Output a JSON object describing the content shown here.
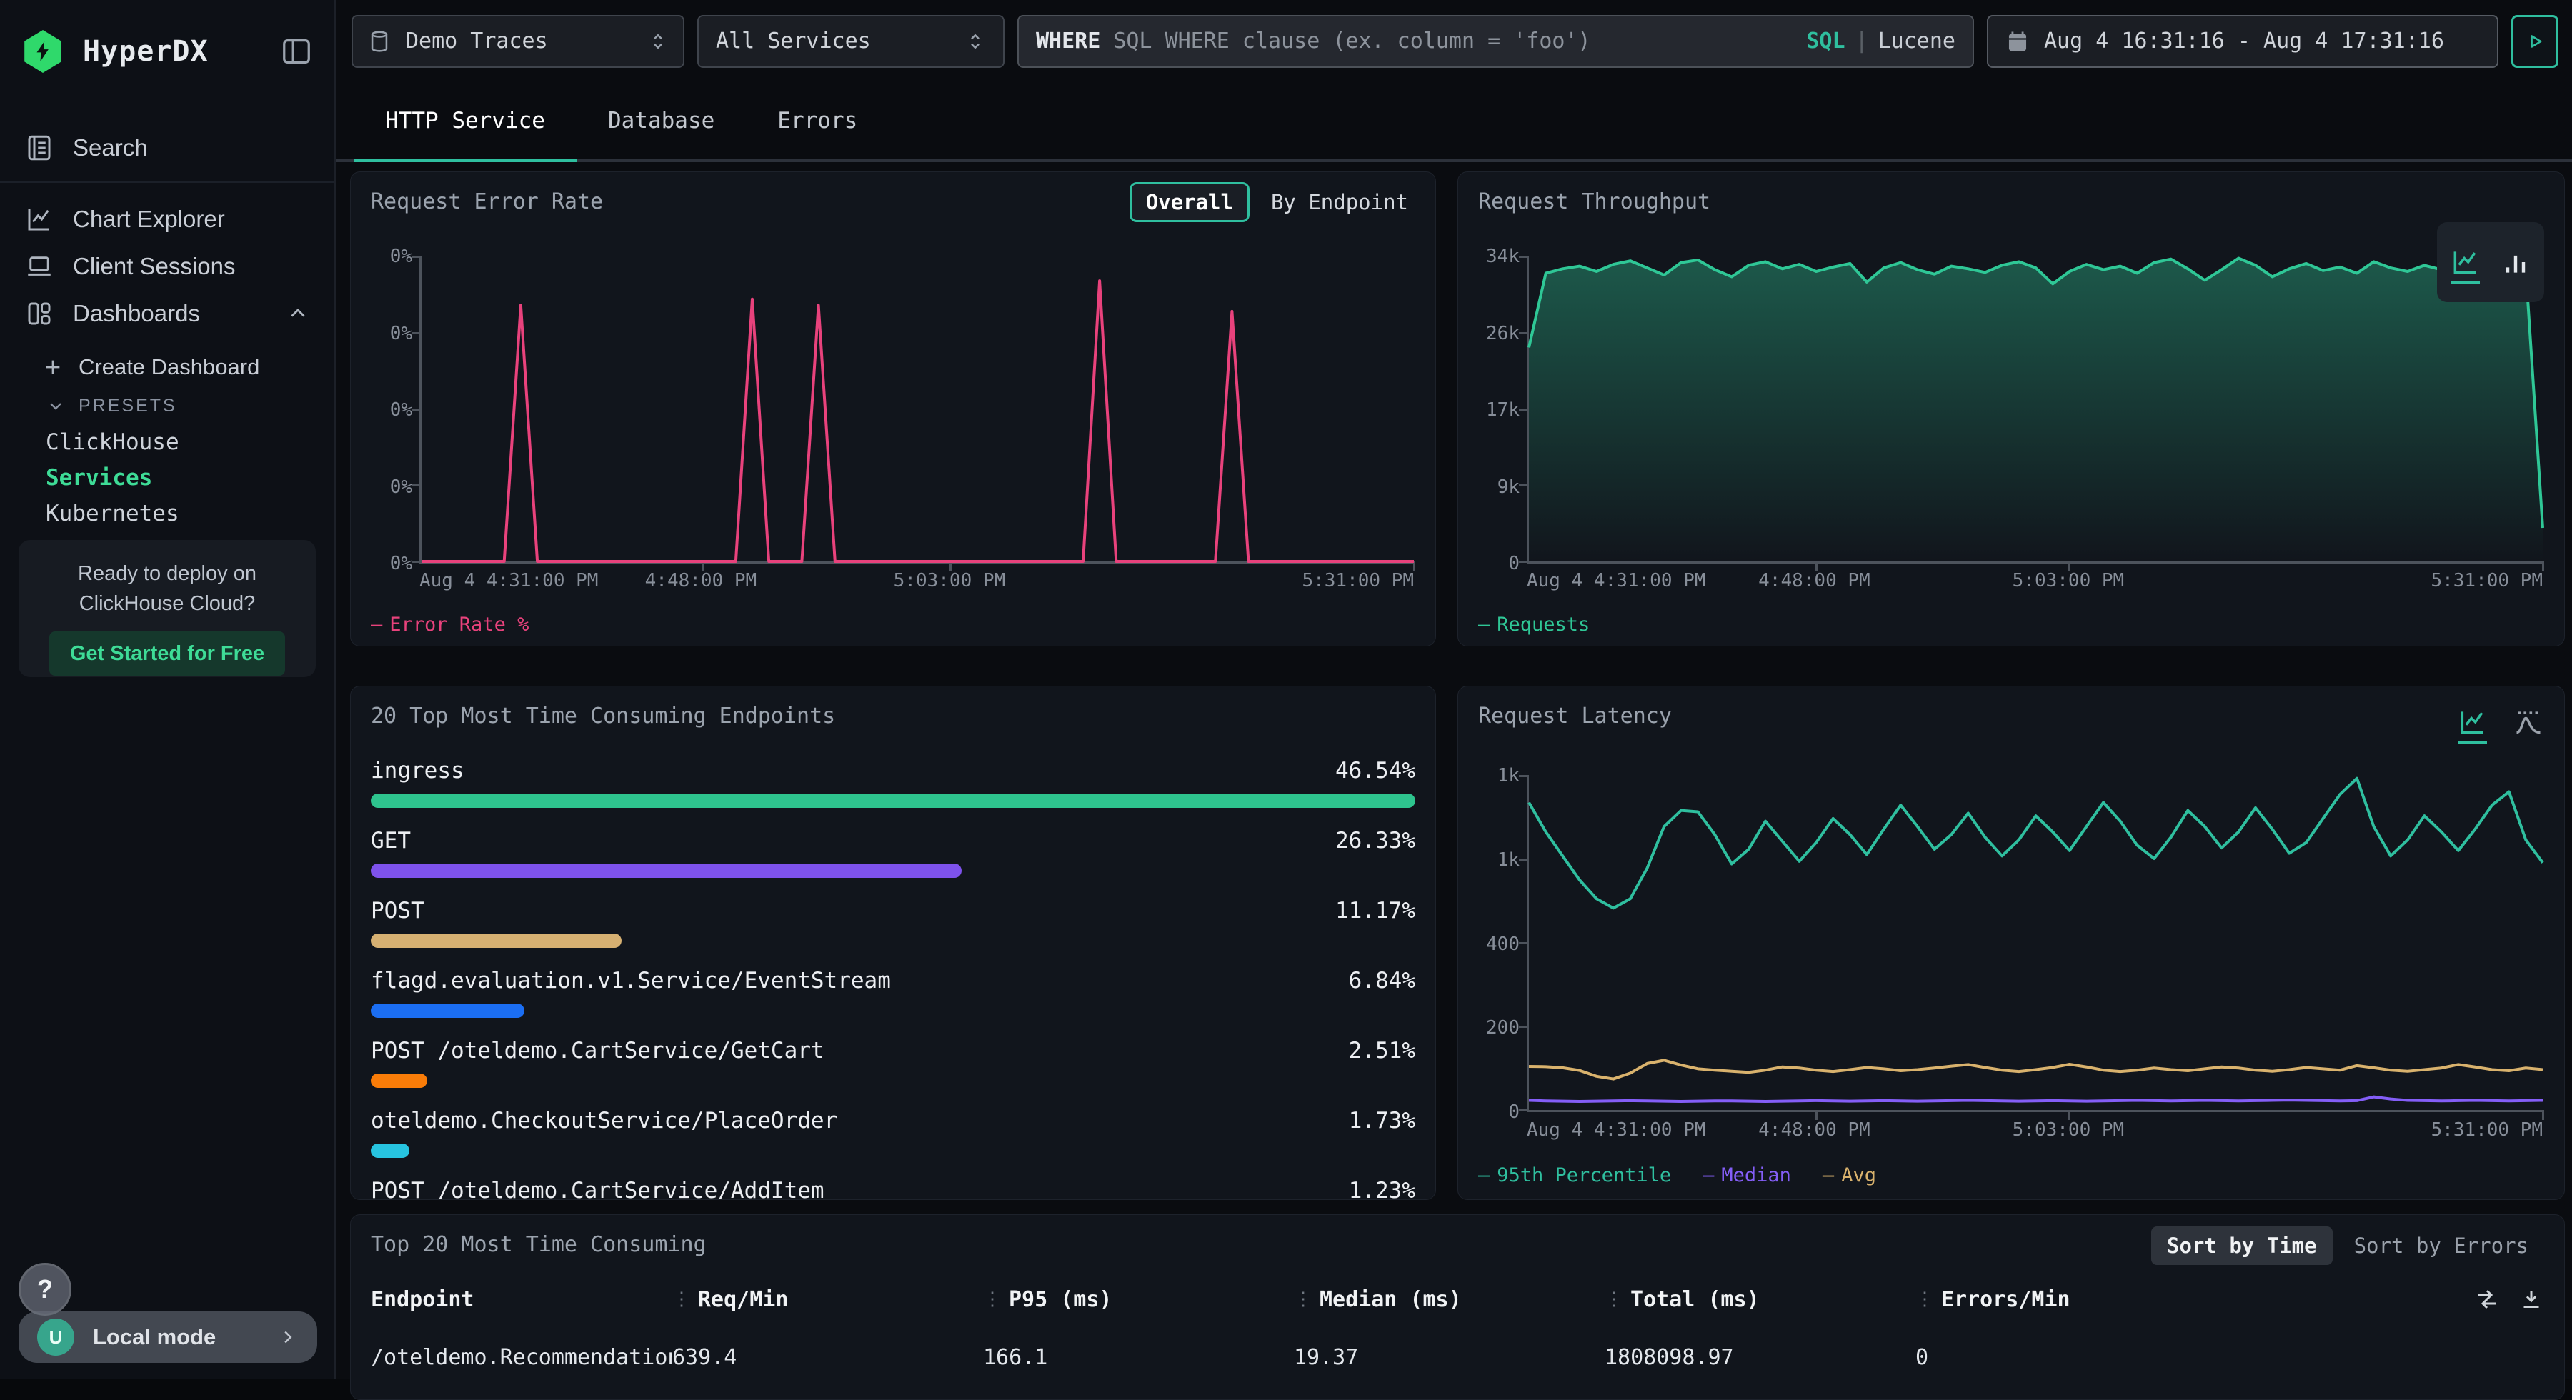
{
  "app": {
    "title": "HyperDX"
  },
  "colors": {
    "accent": "#2fbf9f",
    "logo_green": "#2fd96b",
    "sidebar_active": "#3edc97",
    "error_pink": "#e8427c",
    "purple": "#845ef7",
    "tan": "#d9b26d"
  },
  "sidebar": {
    "logo_text": "HyperDX",
    "nav_items": [
      {
        "label": "Search",
        "icon": "journal"
      },
      {
        "label": "Chart Explorer",
        "icon": "chart-line"
      },
      {
        "label": "Client Sessions",
        "icon": "laptop"
      },
      {
        "label": "Dashboards",
        "icon": "grid",
        "expanded": true
      }
    ],
    "create_dashboard_label": "Create Dashboard",
    "presets_label": "PRESETS",
    "preset_items": [
      {
        "label": "ClickHouse",
        "active": false
      },
      {
        "label": "Services",
        "active": true
      },
      {
        "label": "Kubernetes",
        "active": false
      }
    ],
    "promo": {
      "line1": "Ready to deploy on",
      "line2": "ClickHouse Cloud?",
      "button": "Get Started for Free"
    },
    "help_label": "?",
    "user": {
      "avatar_initial": "U",
      "label": "Local mode"
    }
  },
  "topbar": {
    "source_select": {
      "value": "Demo Traces"
    },
    "service_select": {
      "value": "All Services"
    },
    "where_input": {
      "label": "WHERE",
      "placeholder": "SQL WHERE clause (ex. column = 'foo')",
      "mode_sql": "SQL",
      "mode_divider": "|",
      "mode_lucene": "Lucene"
    },
    "time_range": {
      "value": "Aug 4 16:31:16 - Aug 4 17:31:16"
    }
  },
  "tabs": [
    {
      "label": "HTTP Service",
      "active": true
    },
    {
      "label": "Database",
      "active": false
    },
    {
      "label": "Errors",
      "active": false
    }
  ],
  "panels": {
    "error_rate": {
      "title": "Request Error Rate",
      "toggle": [
        {
          "label": "Overall",
          "active": true
        },
        {
          "label": "By Endpoint",
          "active": false
        }
      ]
    },
    "throughput": {
      "title": "Request Throughput"
    },
    "endpoints": {
      "title": "20 Top Most Time Consuming Endpoints"
    },
    "latency": {
      "title": "Request Latency"
    },
    "table": {
      "title": "Top 20 Most Time Consuming",
      "sort_buttons": [
        {
          "label": "Sort by Time",
          "active": true
        },
        {
          "label": "Sort by Errors",
          "active": false
        }
      ],
      "columns": [
        "Endpoint",
        "Req/Min",
        "P95 (ms)",
        "Median (ms)",
        "Total (ms)",
        "Errors/Min"
      ],
      "rows": [
        [
          "/oteldemo.RecommendationServ",
          "639.4",
          "166.1",
          "19.37",
          "1808098.97",
          "0"
        ]
      ]
    }
  },
  "chart_data": [
    {
      "id": "error_rate",
      "type": "line",
      "title": "Request Error Rate",
      "x_tick_labels": [
        "Aug 4 4:31:00 PM",
        "4:48:00 PM",
        "5:03:00 PM",
        "5:31:00 PM"
      ],
      "x_tick_pos": [
        0,
        0.283,
        0.533,
        1
      ],
      "y_tick_labels": [
        "0%",
        "0%",
        "0%",
        "0%",
        "0%"
      ],
      "ylim": [
        0,
        0.005
      ],
      "grid": false,
      "legend_position": "bottom-left",
      "legend": [
        {
          "name": "Error Rate %",
          "color": "#e8427c"
        }
      ],
      "series": [
        {
          "name": "Error Rate %",
          "color": "#e8427c",
          "values": [
            0,
            0,
            0,
            0,
            0,
            0,
            0.0042,
            0,
            0,
            0,
            0,
            0,
            0,
            0,
            0,
            0,
            0,
            0,
            0,
            0,
            0.0043,
            0,
            0,
            0,
            0.0042,
            0,
            0,
            0,
            0,
            0,
            0,
            0,
            0,
            0,
            0,
            0,
            0,
            0,
            0,
            0,
            0,
            0.0046,
            0,
            0,
            0,
            0,
            0,
            0,
            0,
            0.0041,
            0,
            0,
            0,
            0,
            0,
            0,
            0,
            0,
            0,
            0,
            0
          ]
        }
      ]
    },
    {
      "id": "throughput",
      "type": "area",
      "title": "Request Throughput",
      "x_tick_labels": [
        "Aug 4 4:31:00 PM",
        "4:48:00 PM",
        "5:03:00 PM",
        "5:31:00 PM"
      ],
      "x_tick_pos": [
        0,
        0.283,
        0.533,
        1
      ],
      "y_tick_labels": [
        "34k",
        "26k",
        "17k",
        "9k",
        "0"
      ],
      "ylim": [
        0,
        34500
      ],
      "grid": false,
      "legend_position": "bottom-left",
      "legend": [
        {
          "name": "Requests",
          "color": "#2fc796"
        }
      ],
      "series": [
        {
          "name": "Requests",
          "color": "#2fc796",
          "fill": true,
          "values": [
            24200,
            32600,
            33100,
            33400,
            32800,
            33600,
            34000,
            33200,
            32400,
            33800,
            34100,
            33000,
            32200,
            33500,
            33900,
            33100,
            33600,
            32800,
            33300,
            33700,
            31600,
            33200,
            33800,
            33000,
            32500,
            33400,
            33100,
            32700,
            33500,
            33900,
            33200,
            31400,
            32800,
            33600,
            33000,
            33400,
            32600,
            33800,
            34200,
            33100,
            31800,
            33000,
            34300,
            33500,
            32200,
            33100,
            33700,
            32900,
            33300,
            32600,
            33900,
            33200,
            32800,
            33500,
            33000,
            33600,
            33100,
            32700,
            33400,
            33000,
            3800
          ]
        }
      ]
    },
    {
      "id": "endpoints",
      "type": "bar",
      "orientation": "horizontal",
      "scale": "relative-to-max",
      "title": "20 Top Most Time Consuming Endpoints",
      "categories": [
        "ingress",
        "GET",
        "POST",
        "flagd.evaluation.v1.Service/EventStream",
        "POST /oteldemo.CartService/GetCart",
        "oteldemo.CheckoutService/PlaceOrder",
        "POST /oteldemo.CartService/AddItem"
      ],
      "values": [
        46.54,
        26.33,
        11.17,
        6.84,
        2.51,
        1.73,
        1.23
      ],
      "value_labels": [
        "46.54%",
        "26.33%",
        "11.17%",
        "6.84%",
        "2.51%",
        "1.73%",
        "1.23%"
      ],
      "colors": [
        "#2ec48e",
        "#7e52ec",
        "#d6b072",
        "#1b6ef3",
        "#f97c08",
        "#27c4e0",
        "#e64980"
      ]
    },
    {
      "id": "latency",
      "type": "line",
      "title": "Request Latency",
      "x_tick_labels": [
        "Aug 4 4:31:00 PM",
        "4:48:00 PM",
        "5:03:00 PM",
        "5:31:00 PM"
      ],
      "x_tick_pos": [
        0,
        0.283,
        0.533,
        1
      ],
      "y_tick_labels": [
        "1k",
        "1k",
        "400",
        "200",
        "0"
      ],
      "ylim": [
        0,
        1250
      ],
      "grid": false,
      "legend_position": "bottom-left",
      "legend": [
        {
          "name": "95th Percentile",
          "color": "#2fbf9f"
        },
        {
          "name": "Median",
          "color": "#845ef7"
        },
        {
          "name": "Avg",
          "color": "#d9b26d"
        }
      ],
      "series": [
        {
          "name": "95th Percentile",
          "color": "#2fbf9f",
          "values": [
            1150,
            1040,
            950,
            860,
            790,
            755,
            790,
            905,
            1060,
            1120,
            1115,
            1030,
            920,
            975,
            1080,
            1005,
            930,
            1000,
            1090,
            1030,
            955,
            1050,
            1140,
            1060,
            975,
            1030,
            1110,
            1020,
            950,
            1010,
            1100,
            1040,
            970,
            1060,
            1150,
            1080,
            990,
            940,
            1020,
            1120,
            1060,
            980,
            1040,
            1130,
            1050,
            960,
            1000,
            1090,
            1180,
            1240,
            1060,
            950,
            1010,
            1100,
            1040,
            970,
            1050,
            1140,
            1190,
            1010,
            925
          ]
        },
        {
          "name": "Median",
          "color": "#845ef7",
          "values": [
            36,
            34,
            33,
            32,
            33,
            34,
            35,
            34,
            33,
            32,
            33,
            34,
            34,
            33,
            32,
            33,
            34,
            35,
            34,
            33,
            34,
            35,
            34,
            33,
            34,
            35,
            36,
            35,
            34,
            33,
            34,
            35,
            34,
            33,
            34,
            35,
            36,
            35,
            34,
            35,
            36,
            35,
            34,
            35,
            36,
            37,
            36,
            35,
            34,
            35,
            49,
            41,
            36,
            35,
            34,
            35,
            36,
            35,
            34,
            35,
            36
          ]
        },
        {
          "name": "Avg",
          "color": "#d9b26d",
          "values": [
            163,
            162,
            158,
            148,
            126,
            116,
            138,
            174,
            186,
            168,
            154,
            149,
            145,
            141,
            149,
            161,
            157,
            149,
            144,
            151,
            159,
            154,
            147,
            151,
            157,
            164,
            170,
            159,
            149,
            144,
            151,
            159,
            171,
            161,
            149,
            144,
            149,
            157,
            151,
            147,
            154,
            161,
            157,
            149,
            145,
            151,
            159,
            154,
            149,
            166,
            158,
            149,
            145,
            151,
            157,
            170,
            161,
            151,
            147,
            157,
            151
          ]
        }
      ]
    }
  ]
}
